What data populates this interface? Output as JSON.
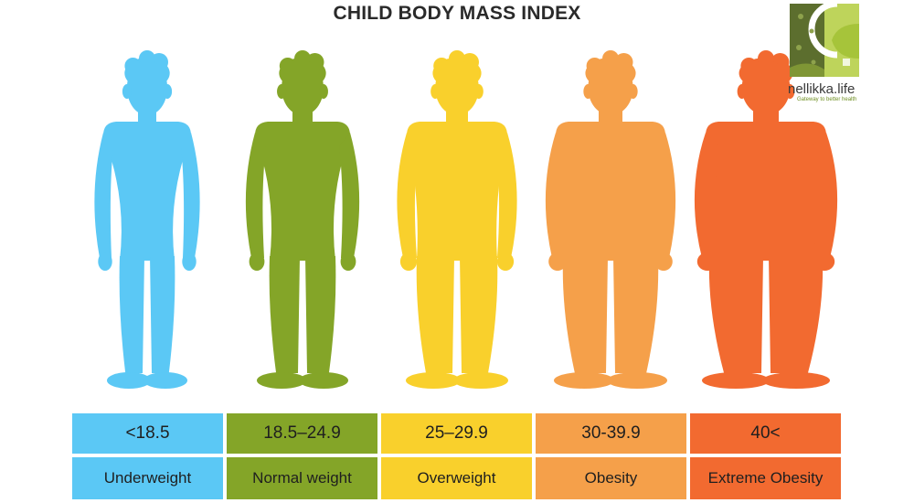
{
  "title": "CHILD BODY MASS INDEX",
  "logo": {
    "name": "nellikka.life",
    "tagline": "Gateway to better health"
  },
  "categories": [
    {
      "range": "<18.5",
      "label": "Underweight",
      "color": "#5bc8f5",
      "build": 0
    },
    {
      "range": "18.5–24.9",
      "label": "Normal weight",
      "color": "#84a528",
      "build": 1
    },
    {
      "range": "25–29.9",
      "label": "Overweight",
      "color": "#f9d02c",
      "build": 2
    },
    {
      "range": "30-39.9",
      "label": "Obesity",
      "color": "#f5a04a",
      "build": 3
    },
    {
      "range": "40<",
      "label": "Extreme Obesity",
      "color": "#f26a30",
      "build": 4
    }
  ]
}
